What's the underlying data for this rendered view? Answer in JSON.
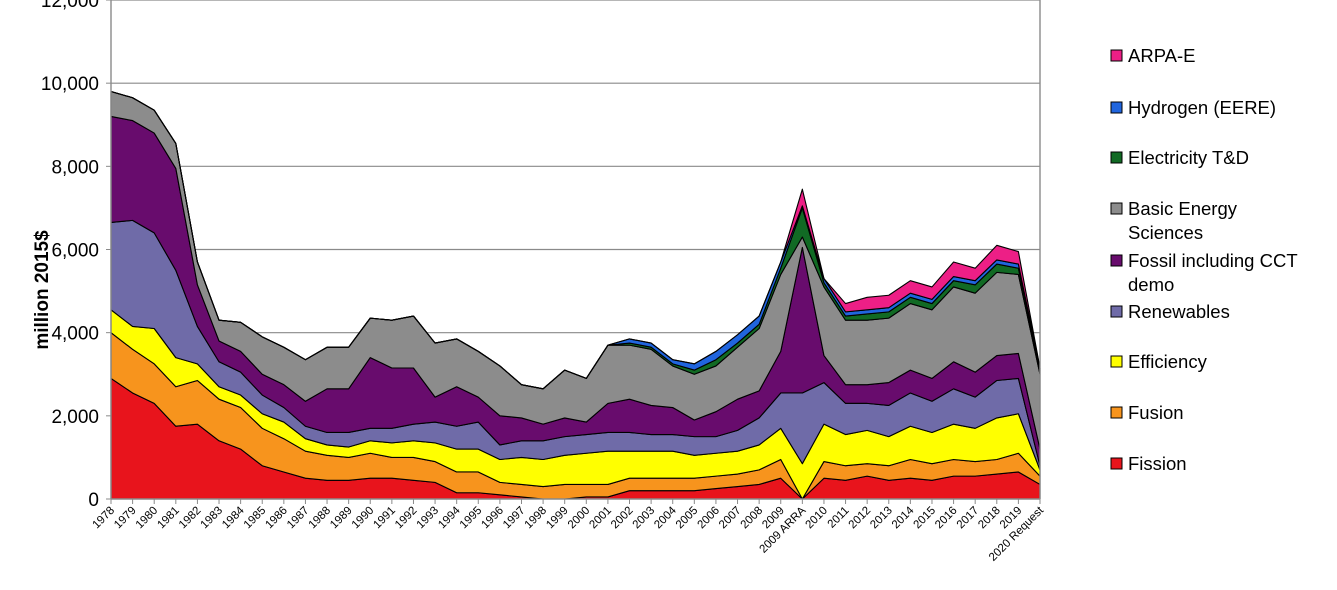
{
  "chart_data": {
    "type": "area",
    "stacked": true,
    "ylabel": "million 2015$",
    "xlabel": "",
    "ylim": [
      0,
      12000
    ],
    "yticks": [
      "0",
      "2,000",
      "4,000",
      "6,000",
      "8,000",
      "10,000",
      "12,000"
    ],
    "grid": true,
    "legend_position": "right",
    "categories": [
      "1978",
      "1979",
      "1980",
      "1981",
      "1982",
      "1983",
      "1984",
      "1985",
      "1986",
      "1987",
      "1988",
      "1989",
      "1990",
      "1991",
      "1992",
      "1993",
      "1994",
      "1995",
      "1996",
      "1997",
      "1998",
      "1999",
      "2000",
      "2001",
      "2002",
      "2003",
      "2004",
      "2005",
      "2006",
      "2007",
      "2008",
      "2009",
      "2009 ARRA",
      "2010",
      "2011",
      "2012",
      "2013",
      "2014",
      "2015",
      "2016",
      "2017",
      "2018",
      "2019",
      "2020 Request"
    ],
    "series": [
      {
        "name": "Fission",
        "color": "#e8141c",
        "values": [
          2900,
          2550,
          2300,
          1750,
          1800,
          1400,
          1200,
          800,
          650,
          500,
          450,
          450,
          500,
          500,
          450,
          400,
          150,
          150,
          100,
          50,
          0,
          0,
          50,
          50,
          200,
          200,
          200,
          200,
          250,
          300,
          350,
          500,
          0,
          500,
          450,
          550,
          450,
          500,
          450,
          550,
          550,
          600,
          650,
          350
        ]
      },
      {
        "name": "Fusion",
        "color": "#f7941d",
        "values": [
          1100,
          1050,
          950,
          950,
          1050,
          1000,
          1000,
          900,
          800,
          650,
          600,
          550,
          600,
          500,
          550,
          500,
          500,
          500,
          300,
          300,
          300,
          350,
          300,
          300,
          300,
          300,
          300,
          300,
          300,
          300,
          350,
          450,
          0,
          400,
          350,
          300,
          350,
          450,
          400,
          400,
          350,
          350,
          450,
          200
        ]
      },
      {
        "name": "Efficiency",
        "color": "#ffff00",
        "values": [
          550,
          550,
          850,
          700,
          400,
          300,
          300,
          350,
          400,
          300,
          250,
          250,
          300,
          350,
          400,
          450,
          550,
          550,
          550,
          650,
          650,
          700,
          750,
          800,
          650,
          650,
          650,
          550,
          550,
          550,
          600,
          750,
          850,
          900,
          750,
          800,
          700,
          800,
          750,
          850,
          800,
          1000,
          950,
          150
        ]
      },
      {
        "name": "Renewables",
        "color": "#6f6ba8",
        "values": [
          2100,
          2550,
          2300,
          2100,
          900,
          600,
          550,
          450,
          350,
          300,
          300,
          350,
          300,
          350,
          400,
          500,
          550,
          650,
          350,
          400,
          450,
          450,
          450,
          450,
          450,
          400,
          400,
          450,
          400,
          500,
          650,
          850,
          1700,
          1000,
          750,
          650,
          750,
          800,
          750,
          850,
          750,
          900,
          850,
          100
        ]
      },
      {
        "name": "Fossil including CCT demo",
        "color": "#680c6d",
        "values": [
          2550,
          2400,
          2400,
          2450,
          1000,
          500,
          500,
          500,
          550,
          600,
          1050,
          1050,
          1700,
          1450,
          1350,
          600,
          950,
          600,
          700,
          550,
          400,
          450,
          300,
          700,
          800,
          700,
          650,
          400,
          600,
          750,
          650,
          1000,
          3500,
          650,
          450,
          450,
          550,
          550,
          550,
          650,
          600,
          600,
          600,
          400
        ]
      },
      {
        "name": "Basic Energy Sciences",
        "color": "#8c8c8c",
        "values": [
          600,
          550,
          550,
          600,
          550,
          500,
          700,
          900,
          900,
          1000,
          1000,
          1000,
          950,
          1150,
          1250,
          1300,
          1150,
          1100,
          1200,
          800,
          850,
          1150,
          1050,
          1400,
          1300,
          1350,
          1000,
          1100,
          1100,
          1250,
          1500,
          1850,
          250,
          1650,
          1550,
          1550,
          1550,
          1600,
          1650,
          1800,
          1900,
          2000,
          1900,
          1800
        ]
      },
      {
        "name": "Electricity T&D",
        "color": "#116a24",
        "values": [
          0,
          0,
          0,
          0,
          0,
          0,
          0,
          0,
          0,
          0,
          0,
          0,
          0,
          0,
          0,
          0,
          0,
          0,
          0,
          0,
          0,
          0,
          0,
          0,
          50,
          50,
          50,
          100,
          150,
          100,
          100,
          150,
          700,
          100,
          100,
          150,
          150,
          150,
          150,
          150,
          200,
          200,
          150,
          100
        ]
      },
      {
        "name": "Hydrogen (EERE)",
        "color": "#2065de",
        "values": [
          0,
          0,
          0,
          0,
          0,
          0,
          0,
          0,
          0,
          0,
          0,
          0,
          0,
          0,
          0,
          0,
          0,
          0,
          0,
          0,
          0,
          0,
          0,
          0,
          100,
          100,
          100,
          150,
          200,
          200,
          200,
          150,
          50,
          100,
          100,
          100,
          100,
          100,
          100,
          100,
          100,
          100,
          100,
          50
        ]
      },
      {
        "name": "ARPA-E",
        "color": "#ed1f86",
        "values": [
          0,
          0,
          0,
          0,
          0,
          0,
          0,
          0,
          0,
          0,
          0,
          0,
          0,
          0,
          0,
          0,
          0,
          0,
          0,
          0,
          0,
          0,
          0,
          0,
          0,
          0,
          0,
          0,
          0,
          0,
          0,
          0,
          400,
          0,
          200,
          300,
          300,
          300,
          300,
          350,
          300,
          350,
          300,
          0
        ]
      }
    ],
    "legend_order": [
      "ARPA-E",
      "Hydrogen (EERE)",
      "Electricity T&D",
      "Basic Energy Sciences",
      "Fossil including CCT demo",
      "Renewables",
      "Efficiency",
      "Fusion",
      "Fission"
    ]
  }
}
